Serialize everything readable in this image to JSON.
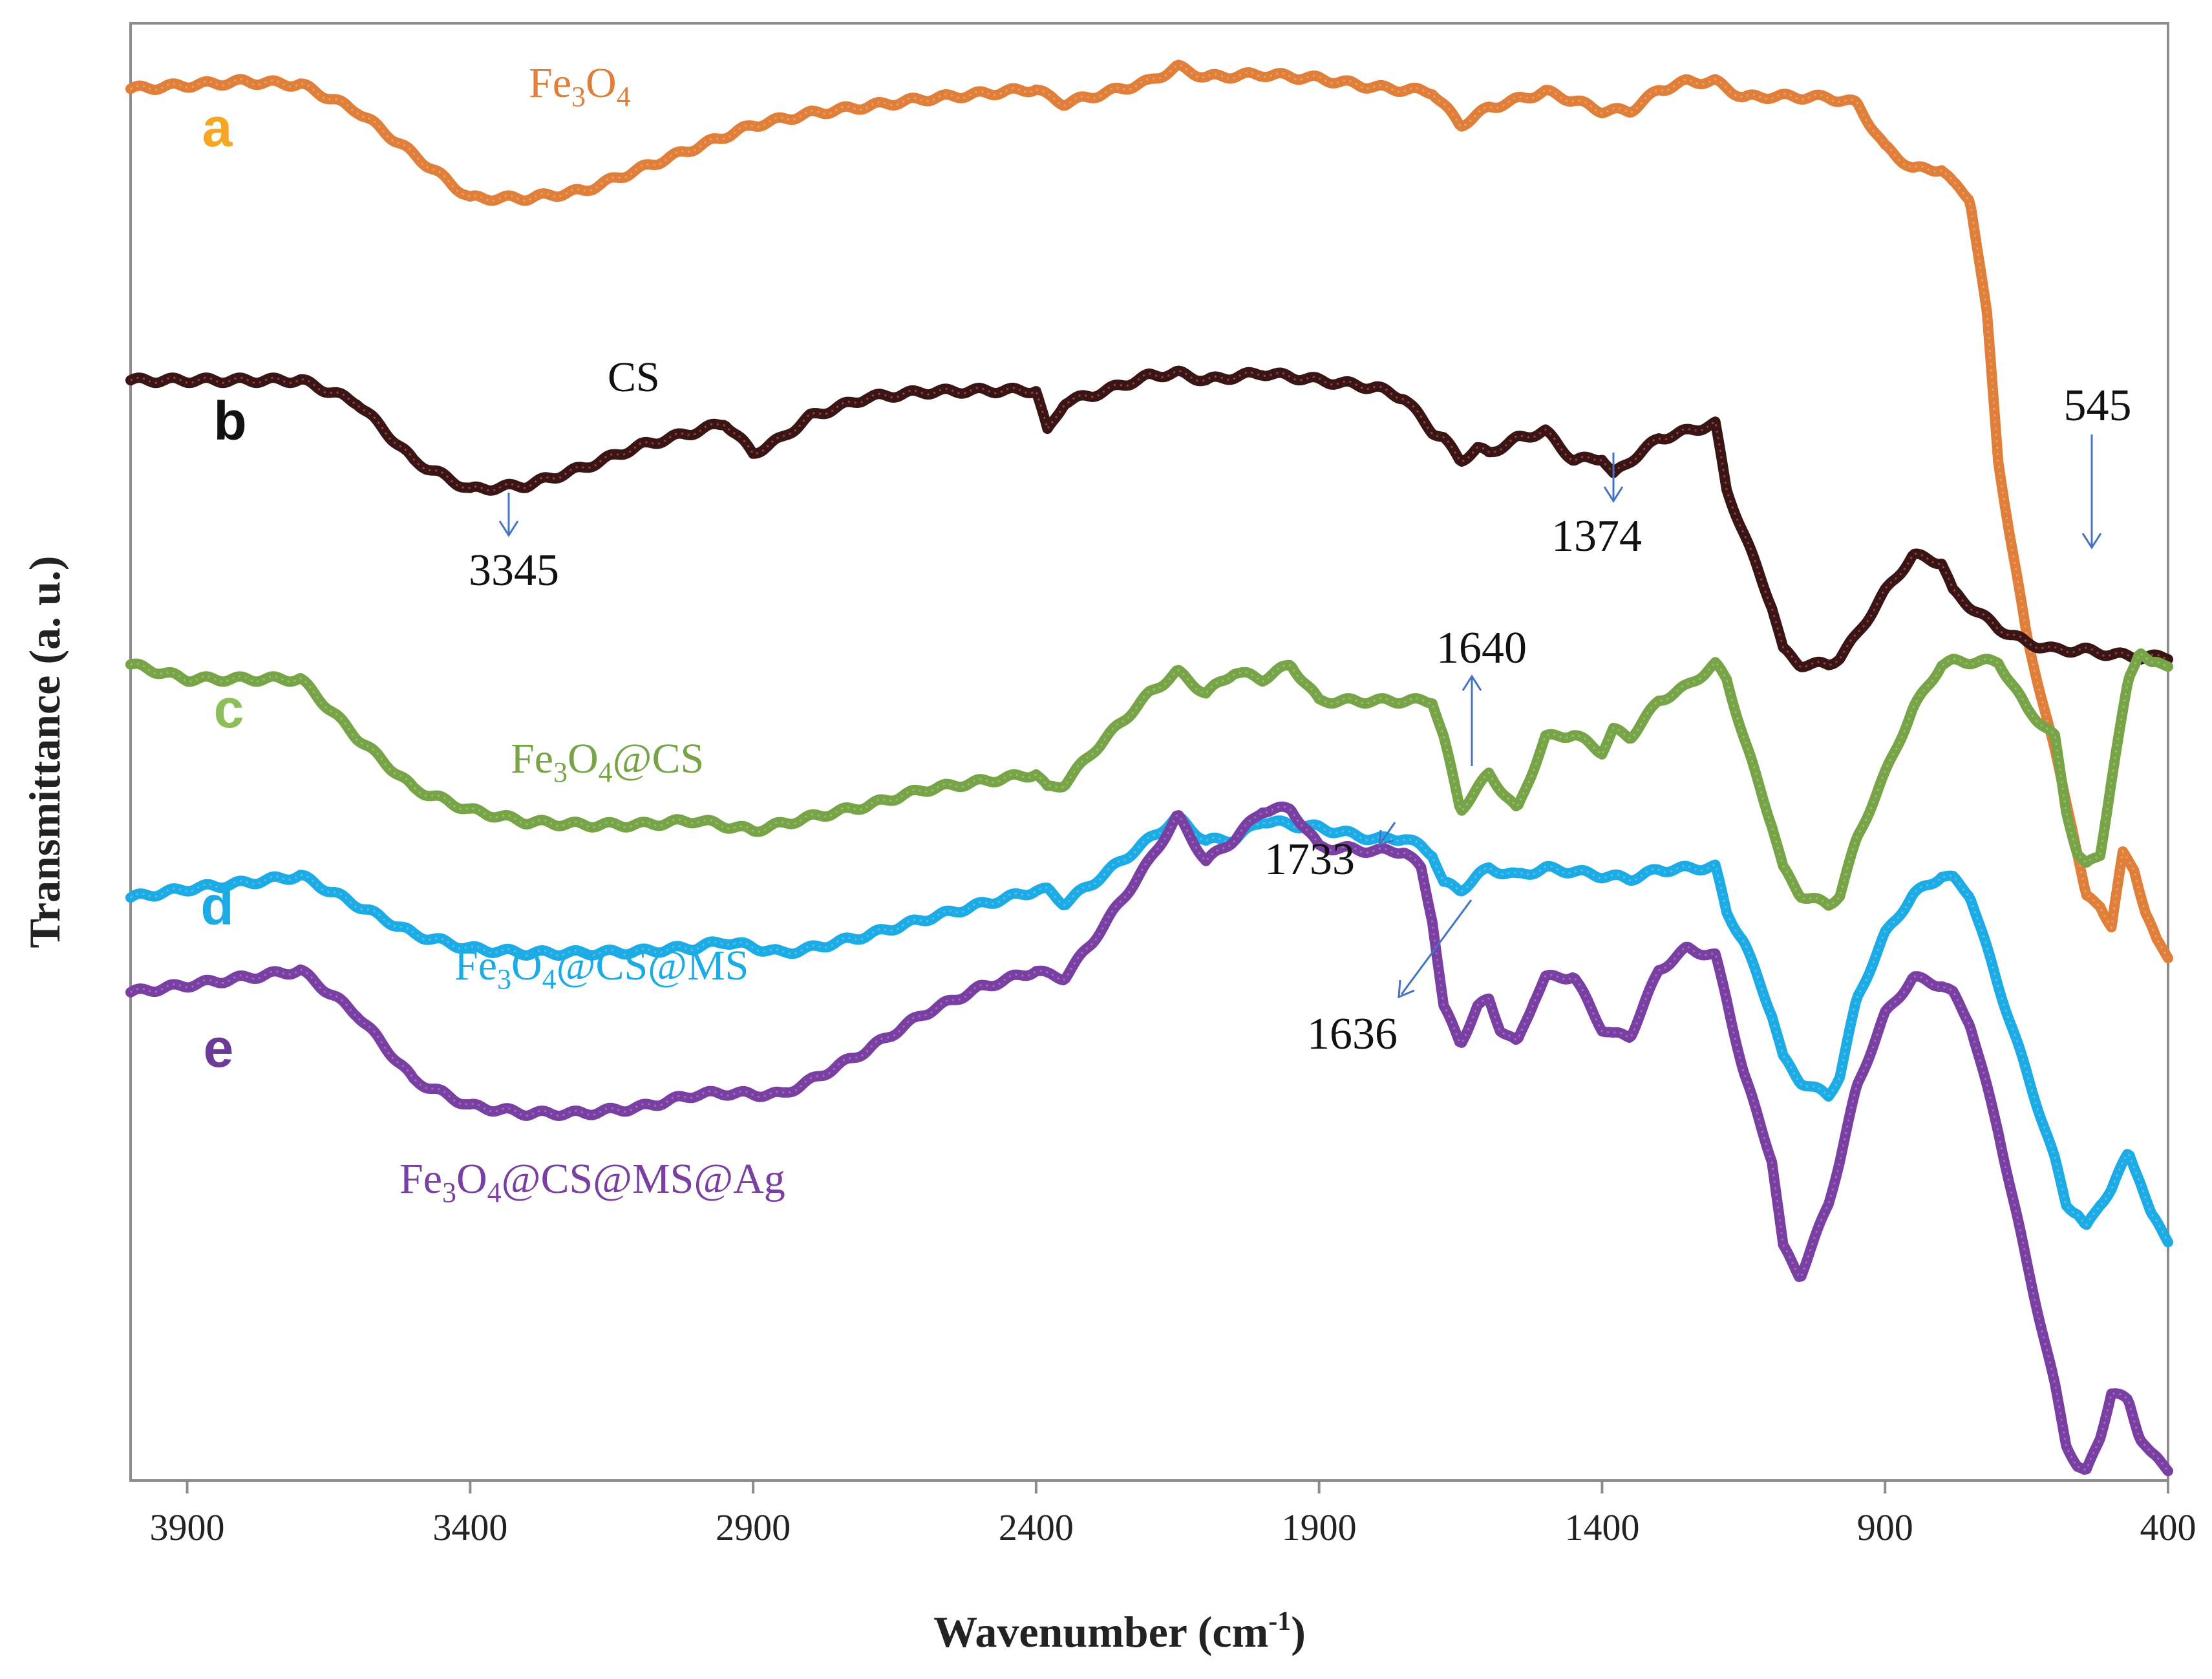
{
  "chart_data": {
    "type": "line",
    "title": "",
    "xlabel": "Wavenumber (cm",
    "xlabel_sup": "-1",
    "xlabel_end": ")",
    "ylabel": "Transmittance (a. u.)",
    "xlim": [
      4000,
      400
    ],
    "ylim": [
      0,
      100
    ],
    "x_ticks": [
      3900,
      3400,
      2900,
      2400,
      1900,
      1400,
      900,
      400
    ],
    "x_tick_labels": [
      "3900",
      "3400",
      "2900",
      "2400",
      "1900",
      "1400",
      "900",
      "400"
    ],
    "grid": false,
    "series": [
      {
        "id": "a",
        "letter": "a",
        "name_parts": [
          "Fe",
          "3",
          "O",
          "4"
        ],
        "color": "#E07F3A",
        "letter_color": "#F5A623",
        "x": [
          4000,
          3800,
          3700,
          3600,
          3500,
          3400,
          3300,
          3200,
          3100,
          3000,
          2900,
          2800,
          2600,
          2400,
          2380,
          2350,
          2200,
          2150,
          2100,
          2000,
          1900,
          1800,
          1700,
          1650,
          1600,
          1500,
          1450,
          1400,
          1350,
          1300,
          1250,
          1200,
          1150,
          1100,
          1000,
          950,
          900,
          850,
          800,
          780,
          750,
          720,
          700,
          680,
          650,
          600,
          570,
          545,
          520,
          500,
          480,
          460,
          440,
          420,
          400
        ],
        "y": [
          95.5,
          96,
          95.8,
          94,
          91,
          88,
          88,
          88.5,
          90,
          91.5,
          93,
          93.8,
          94.8,
          95.5,
          95,
          94.5,
          96,
          97,
          96.3,
          96.5,
          96.2,
          95.6,
          95.3,
          93,
          94.2,
          95.3,
          94.7,
          94,
          94,
          95.4,
          96,
          96,
          94.9,
          95,
          94.9,
          94.5,
          91.5,
          90,
          90,
          89,
          88,
          80,
          70,
          65,
          58,
          50,
          45,
          40,
          39.5,
          38,
          43,
          42,
          39,
          37,
          36
        ]
      },
      {
        "id": "b",
        "letter": "b",
        "name_parts": [
          "CS"
        ],
        "color": "#3A1515",
        "letter_color": "#111111",
        "x": [
          4000,
          3800,
          3700,
          3600,
          3500,
          3400,
          3300,
          3200,
          3100,
          3000,
          2950,
          2900,
          2850,
          2800,
          2700,
          2600,
          2500,
          2400,
          2380,
          2350,
          2300,
          2200,
          2150,
          2100,
          2000,
          1900,
          1800,
          1750,
          1700,
          1680,
          1650,
          1620,
          1600,
          1550,
          1500,
          1450,
          1400,
          1380,
          1350,
          1300,
          1250,
          1200,
          1180,
          1150,
          1100,
          1080,
          1050,
          1000,
          980,
          950,
          900,
          850,
          800,
          780,
          750,
          700,
          650,
          600,
          550,
          500,
          450,
          400
        ],
        "y": [
          75.5,
          75.5,
          75.5,
          74,
          70,
          68,
          68.3,
          69.5,
          71,
          72,
          72.6,
          70.5,
          71.5,
          73,
          74.3,
          74.7,
          74.8,
          74.8,
          72,
          74,
          74.5,
          75.8,
          76,
          75.5,
          76,
          75.5,
          75,
          74.3,
          72,
          71.5,
          70,
          70.8,
          70.5,
          71.5,
          72,
          70,
          70.2,
          69,
          70,
          71.5,
          72,
          72.5,
          68,
          65,
          60,
          57,
          56,
          56,
          56.5,
          58,
          61,
          63.5,
          63,
          61,
          60,
          58.5,
          57.5,
          57,
          57,
          56.7,
          56.5,
          56.5
        ]
      },
      {
        "id": "c",
        "letter": "c",
        "name_parts": [
          "Fe",
          "3",
          "O",
          "4",
          "@CS"
        ],
        "color": "#77A447",
        "letter_color": "#8DBE5A",
        "x": [
          4000,
          3900,
          3800,
          3700,
          3600,
          3500,
          3400,
          3300,
          3200,
          3100,
          3000,
          2900,
          2800,
          2700,
          2600,
          2400,
          2380,
          2350,
          2300,
          2200,
          2150,
          2100,
          2050,
          2000,
          1950,
          1900,
          1800,
          1750,
          1700,
          1680,
          1650,
          1600,
          1550,
          1500,
          1450,
          1400,
          1380,
          1350,
          1300,
          1250,
          1200,
          1180,
          1150,
          1100,
          1080,
          1050,
          1000,
          980,
          950,
          900,
          850,
          800,
          780,
          750,
          700,
          650,
          600,
          580,
          560,
          545,
          520,
          500,
          470,
          450,
          430,
          400
        ],
        "y": [
          56,
          55,
          55,
          55,
          51,
          47.5,
          46,
          45.2,
          45,
          45,
          45.3,
          44.6,
          45.5,
          46.3,
          47.4,
          48.5,
          47.5,
          47.8,
          50,
          54,
          55.5,
          54,
          55.5,
          55,
          56,
          53.5,
          53.5,
          53.5,
          53.5,
          51,
          46,
          48.5,
          46,
          51,
          51.2,
          50,
          51.5,
          51,
          53.5,
          54.5,
          56,
          55,
          51,
          45,
          42,
          40.2,
          39.5,
          40.2,
          44,
          48.5,
          53,
          56,
          56.2,
          56.2,
          56.2,
          53,
          51,
          46,
          43,
          42.2,
          43,
          48,
          55,
          57,
          56,
          56
        ]
      },
      {
        "id": "d",
        "letter": "d",
        "name_parts": [
          "Fe",
          "3",
          "O",
          "4",
          "@CS@MS"
        ],
        "color": "#1CABE4",
        "letter_color": "#1CABE4",
        "x": [
          4000,
          3900,
          3800,
          3700,
          3600,
          3500,
          3400,
          3300,
          3200,
          3100,
          3000,
          2950,
          2900,
          2850,
          2800,
          2700,
          2600,
          2500,
          2400,
          2380,
          2350,
          2300,
          2200,
          2150,
          2100,
          2050,
          2000,
          1950,
          1900,
          1800,
          1750,
          1720,
          1700,
          1680,
          1650,
          1620,
          1600,
          1550,
          1500,
          1450,
          1400,
          1350,
          1300,
          1250,
          1200,
          1180,
          1150,
          1100,
          1080,
          1050,
          1000,
          980,
          950,
          900,
          850,
          800,
          780,
          750,
          700,
          650,
          600,
          580,
          560,
          545,
          520,
          500,
          470,
          450,
          430,
          400
        ],
        "y": [
          40,
          40.6,
          41,
          41.5,
          39.5,
          37.5,
          36.5,
          36.2,
          36.2,
          36.3,
          36.6,
          37,
          36.6,
          36.2,
          36.5,
          37.4,
          38.5,
          39.5,
          40.5,
          40.5,
          39.6,
          41,
          44,
          45.5,
          43.9,
          44,
          45.3,
          45,
          44.8,
          44,
          44.1,
          43.5,
          43,
          41,
          40.5,
          41.5,
          42,
          41.5,
          42,
          41.8,
          41.5,
          41.3,
          41.9,
          42,
          42.1,
          39,
          37,
          32,
          29,
          27.4,
          26.4,
          27.8,
          33,
          37.5,
          40.2,
          41.5,
          41.3,
          40.2,
          34,
          28,
          22,
          19,
          18.3,
          17.3,
          19,
          20,
          22.5,
          20.7,
          18.2,
          16.5
        ]
      },
      {
        "id": "e",
        "letter": "e",
        "name_parts": [
          "Fe",
          "3",
          "O",
          "4",
          "@CS@MS@Ag"
        ],
        "color": "#7A3FA2",
        "letter_color": "#6E3A9A",
        "x": [
          4000,
          3900,
          3800,
          3700,
          3600,
          3500,
          3400,
          3300,
          3200,
          3100,
          3000,
          2950,
          2900,
          2850,
          2800,
          2700,
          2600,
          2500,
          2400,
          2380,
          2350,
          2300,
          2200,
          2150,
          2100,
          2050,
          2000,
          1950,
          1900,
          1800,
          1750,
          1720,
          1700,
          1680,
          1650,
          1620,
          1600,
          1580,
          1550,
          1520,
          1500,
          1450,
          1400,
          1380,
          1350,
          1300,
          1250,
          1200,
          1180,
          1150,
          1100,
          1080,
          1050,
          1000,
          980,
          950,
          900,
          850,
          800,
          780,
          750,
          700,
          650,
          600,
          580,
          560,
          545,
          520,
          500,
          470,
          450,
          430,
          400
        ],
        "y": [
          33.5,
          34,
          34.5,
          35,
          32,
          27.5,
          25.7,
          25.2,
          25.2,
          25.6,
          26.5,
          26.6,
          26.5,
          26.5,
          27.4,
          29.5,
          32,
          33.8,
          35,
          34.7,
          34.5,
          37,
          42.5,
          45.6,
          42.5,
          44,
          46,
          46.1,
          43.5,
          43.2,
          43.2,
          42,
          38.5,
          32.5,
          30,
          32.5,
          33,
          31,
          30,
          33,
          34.5,
          34.6,
          31,
          30.6,
          30.5,
          35,
          36.5,
          36,
          33,
          28,
          22,
          16,
          14,
          19,
          22,
          27,
          32,
          34.5,
          34,
          33.4,
          31.4,
          24,
          15,
          6.5,
          2.5,
          1,
          0.5,
          3,
          6,
          5.5,
          3,
          1.8,
          0.8
        ]
      }
    ],
    "annotations": [
      {
        "id": "b3345",
        "text": "3345",
        "color": "#4472C4"
      },
      {
        "id": "b1374",
        "text": "1374",
        "color": "#4472C4"
      },
      {
        "id": "a545",
        "text": "545",
        "color": "#4472C4"
      },
      {
        "id": "c1640",
        "text": "1640",
        "color": "#4472C4"
      },
      {
        "id": "d1733",
        "text": "1733",
        "color": "#4472C4"
      },
      {
        "id": "e1636",
        "text": "1636",
        "color": "#4472C4"
      }
    ]
  }
}
